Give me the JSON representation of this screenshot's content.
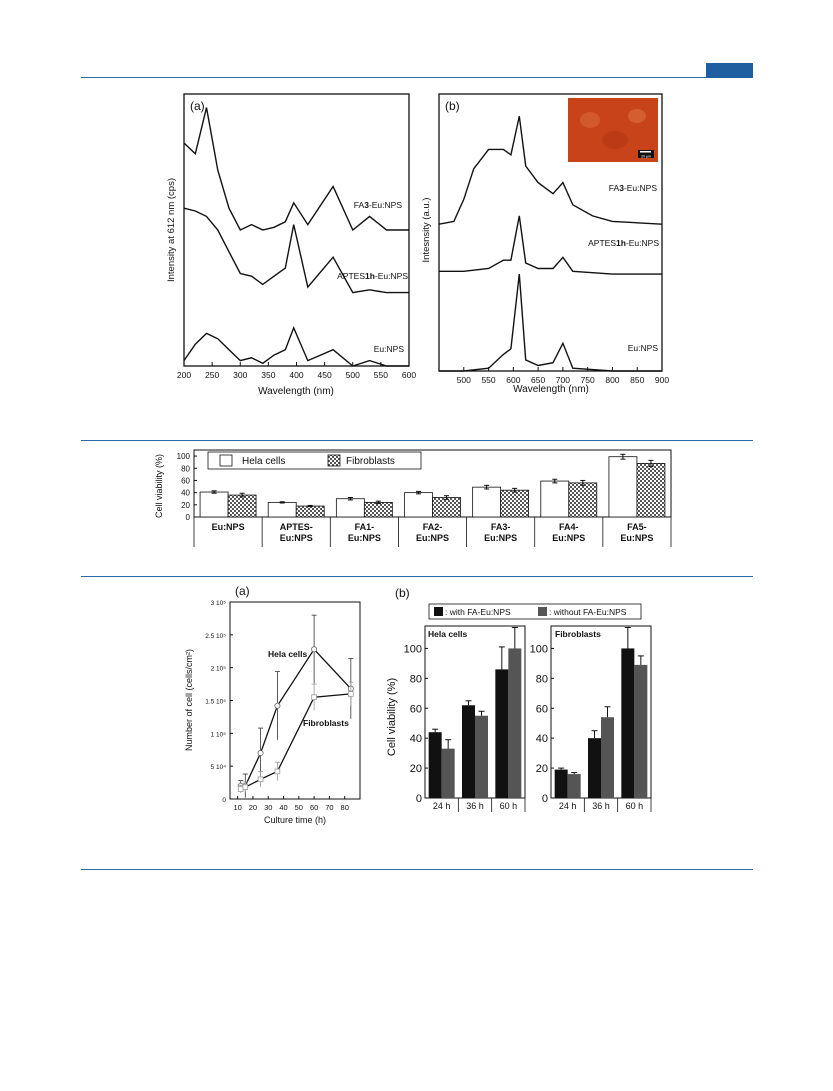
{
  "fig1": {
    "a": {
      "panel": "(a)",
      "ylabel": "Intensity at 612 nm (cps)",
      "xlabel": "Wavelength (nm)",
      "xticks": [
        "200",
        "250",
        "300",
        "350",
        "400",
        "450",
        "500",
        "550",
        "600"
      ],
      "traces": [
        {
          "pre": "FA",
          "bold": "3",
          "post": "-Eu:NPS"
        },
        {
          "pre": "APTES",
          "bold": "1h",
          "post": "-Eu:NPS"
        },
        {
          "pre": "Eu:NPS",
          "bold": "",
          "post": ""
        }
      ]
    },
    "b": {
      "panel": "(b)",
      "ylabel": "Intesnsity (a.u.)",
      "xlabel": "Wavelength (nm)",
      "xticks": [
        "500",
        "550",
        "600",
        "650",
        "700",
        "750",
        "800",
        "850",
        "900"
      ],
      "traces": [
        {
          "pre": "FA",
          "bold": "3",
          "post": "-Eu:NPS"
        },
        {
          "pre": "APTES",
          "bold": "1h",
          "post": "-Eu:NPS"
        },
        {
          "pre": "Eu:NPS",
          "bold": "",
          "post": ""
        }
      ],
      "inset_scale": "20 μm",
      "inset_color": "#c8431a"
    }
  },
  "fig2": {
    "ylabel": "Cell viability (%)",
    "yticks": [
      "0",
      "20",
      "40",
      "60",
      "80",
      "100"
    ],
    "legend": [
      "Hela cells",
      "Fibroblasts"
    ],
    "categories": [
      [
        "Eu:NPS"
      ],
      [
        "APTES-",
        "Eu:NPS"
      ],
      [
        "FA1-",
        "Eu:NPS"
      ],
      [
        "FA2-",
        "Eu:NPS"
      ],
      [
        "FA3-",
        "Eu:NPS"
      ],
      [
        "FA4-",
        "Eu:NPS"
      ],
      [
        "FA5-",
        "Eu:NPS"
      ]
    ]
  },
  "fig3": {
    "a": {
      "panel": "(a)",
      "ylabel": "Number of cell (cells/cm²)",
      "xlabel": "Culture time (h)",
      "yticks": [
        "0",
        "5 10⁴",
        "1 10⁵",
        "1.5 10⁵",
        "2 10⁵",
        "2.5 10⁵",
        "3 10⁵"
      ],
      "xticks": [
        "10",
        "20",
        "30",
        "40",
        "50",
        "60",
        "70",
        "80"
      ],
      "series_labels": [
        "Hela cells",
        "Fibroblasts"
      ]
    },
    "b": {
      "panel": "(b)",
      "legend": [
        ": with FA-Eu:NPS",
        ": without FA-Eu:NPS"
      ],
      "ylabel": "Cell viability (%)",
      "yticks": [
        "0",
        "20",
        "40",
        "60",
        "80",
        "100"
      ],
      "groups": [
        "Hela cells",
        "Fibroblasts"
      ],
      "categories": [
        "24 h",
        "36 h",
        "60 h"
      ]
    }
  },
  "chart_data": [
    {
      "type": "line",
      "xlabel": "Wavelength (nm)",
      "ylabel": "Intensity at 612 nm (cps)",
      "xlim": [
        200,
        600
      ],
      "series": [
        {
          "name": "FA3-Eu:NPS",
          "x": [
            200,
            220,
            240,
            260,
            280,
            300,
            320,
            340,
            360,
            380,
            395,
            420,
            465,
            500,
            530,
            560,
            600
          ],
          "y": [
            0.82,
            0.78,
            0.95,
            0.72,
            0.58,
            0.5,
            0.52,
            0.5,
            0.51,
            0.53,
            0.6,
            0.52,
            0.66,
            0.5,
            0.55,
            0.5,
            0.5
          ]
        },
        {
          "name": "APTES1h-Eu:NPS",
          "x": [
            200,
            220,
            240,
            260,
            280,
            300,
            320,
            340,
            360,
            380,
            395,
            420,
            465,
            500,
            530,
            560,
            600
          ],
          "y": [
            0.58,
            0.57,
            0.55,
            0.5,
            0.42,
            0.34,
            0.33,
            0.3,
            0.33,
            0.36,
            0.52,
            0.29,
            0.4,
            0.27,
            0.28,
            0.27,
            0.27
          ]
        },
        {
          "name": "Eu:NPS",
          "x": [
            200,
            220,
            240,
            260,
            280,
            300,
            320,
            340,
            360,
            380,
            395,
            420,
            465,
            500,
            530,
            560,
            600
          ],
          "y": [
            0.02,
            0.08,
            0.12,
            0.1,
            0.06,
            0.02,
            0.03,
            0.01,
            0.04,
            0.06,
            0.14,
            0.02,
            0.06,
            0.0,
            0.02,
            0.0,
            0.0
          ]
        }
      ]
    },
    {
      "type": "line",
      "xlabel": "Wavelength (nm)",
      "ylabel": "Intesnsity (a.u.)",
      "xlim": [
        450,
        900
      ],
      "series": [
        {
          "name": "FA3-Eu:NPS",
          "x": [
            450,
            480,
            500,
            520,
            550,
            580,
            595,
            612,
            625,
            650,
            680,
            700,
            720,
            760,
            800,
            900
          ],
          "y": [
            0.53,
            0.54,
            0.62,
            0.73,
            0.8,
            0.8,
            0.78,
            0.92,
            0.74,
            0.68,
            0.64,
            0.68,
            0.6,
            0.56,
            0.54,
            0.53
          ]
        },
        {
          "name": "APTES1h-Eu:NPS",
          "x": [
            450,
            500,
            550,
            580,
            595,
            612,
            625,
            650,
            680,
            700,
            720,
            800,
            900
          ],
          "y": [
            0.36,
            0.36,
            0.37,
            0.4,
            0.4,
            0.56,
            0.39,
            0.37,
            0.37,
            0.41,
            0.36,
            0.35,
            0.35
          ]
        },
        {
          "name": "Eu:NPS",
          "x": [
            450,
            500,
            550,
            580,
            595,
            612,
            625,
            650,
            680,
            700,
            720,
            800,
            900
          ],
          "y": [
            0.0,
            0.0,
            0.01,
            0.06,
            0.08,
            0.35,
            0.04,
            0.02,
            0.03,
            0.1,
            0.01,
            0.0,
            0.0
          ]
        }
      ]
    },
    {
      "type": "bar",
      "ylabel": "Cell viability (%)",
      "ylim": [
        0,
        110
      ],
      "categories": [
        "Eu:NPS",
        "APTES-Eu:NPS",
        "FA1-Eu:NPS",
        "FA2-Eu:NPS",
        "FA3-Eu:NPS",
        "FA4-Eu:NPS",
        "FA5-Eu:NPS"
      ],
      "series": [
        {
          "name": "Hela cells",
          "values": [
            41,
            24,
            30,
            40,
            49,
            59,
            99
          ],
          "errors": [
            2,
            1,
            2,
            2,
            3,
            3,
            4
          ]
        },
        {
          "name": "Fibroblasts",
          "values": [
            36,
            18,
            24,
            32,
            44,
            56,
            88
          ],
          "errors": [
            3,
            1,
            2,
            3,
            3,
            4,
            5
          ]
        }
      ]
    },
    {
      "type": "line",
      "xlabel": "Culture time (h)",
      "ylabel": "Number of cell (cells/cm²)",
      "xlim": [
        5,
        90
      ],
      "ylim": [
        0,
        300000
      ],
      "series": [
        {
          "name": "Hela cells",
          "x": [
            12,
            15,
            25,
            36,
            60,
            84
          ],
          "y": [
            20000,
            20000,
            70000,
            142000,
            228000,
            168000
          ],
          "errors": [
            8000,
            18000,
            38000,
            52000,
            52000,
            46000
          ]
        },
        {
          "name": "Fibroblasts",
          "x": [
            12,
            15,
            25,
            36,
            60,
            84
          ],
          "y": [
            15000,
            18000,
            30000,
            42000,
            155000,
            160000
          ],
          "errors": [
            6000,
            8000,
            12000,
            14000,
            20000,
            18000
          ]
        }
      ]
    },
    {
      "type": "bar",
      "ylabel": "Cell viability (%)",
      "ylim": [
        0,
        115
      ],
      "groups": [
        {
          "name": "Hela cells",
          "categories": [
            "24 h",
            "36 h",
            "60 h"
          ],
          "series": [
            {
              "name": ": with FA-Eu:NPS",
              "values": [
                44,
                62,
                86
              ],
              "errors": [
                2,
                3,
                15
              ]
            },
            {
              "name": ": without FA-Eu:NPS",
              "values": [
                33,
                55,
                100
              ],
              "errors": [
                6,
                3,
                14
              ]
            }
          ]
        },
        {
          "name": "Fibroblasts",
          "categories": [
            "24 h",
            "36 h",
            "60 h"
          ],
          "series": [
            {
              "name": ": with FA-Eu:NPS",
              "values": [
                19,
                40,
                100
              ],
              "errors": [
                1,
                5,
                14
              ]
            },
            {
              "name": ": without FA-Eu:NPS",
              "values": [
                16,
                54,
                89
              ],
              "errors": [
                1,
                7,
                6
              ]
            }
          ]
        }
      ]
    }
  ]
}
